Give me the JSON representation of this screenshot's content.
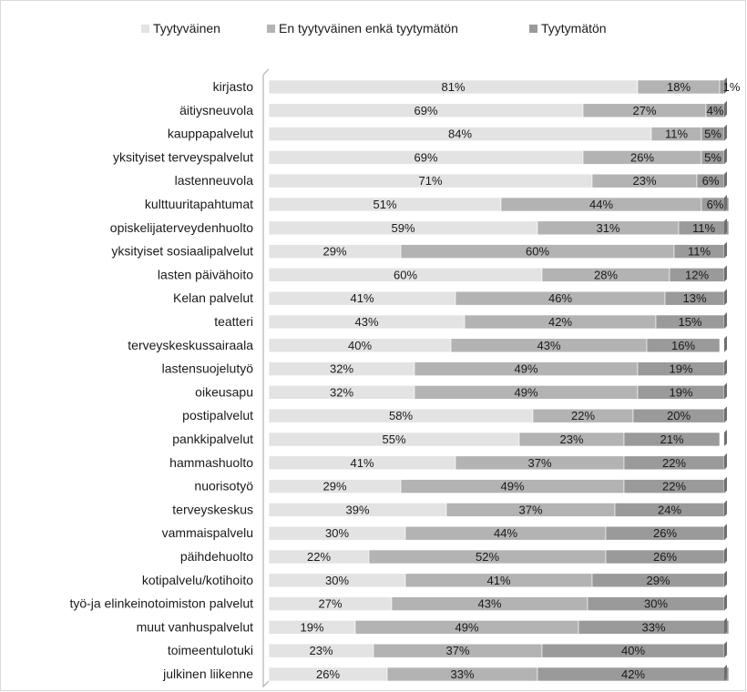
{
  "chart_data": {
    "type": "bar",
    "orientation": "horizontal",
    "stacked": true,
    "percent_stacked": true,
    "legend_placement": "top",
    "grid": false,
    "xlim": [
      0,
      100
    ],
    "categories": [
      "kirjasto",
      "äitiysneuvola",
      "kauppapalvelut",
      "yksityiset terveyspalvelut",
      "lastenneuvola",
      "kulttuuritapahtumat",
      "opiskelijaterveydenhuolto",
      "yksityiset sosiaalipalvelut",
      "lasten päivähoito",
      "Kelan palvelut",
      "teatteri",
      "terveyskeskussairaala",
      "lastensuojelutyö",
      "oikeusapu",
      "postipalvelut",
      "pankkipalvelut",
      "hammashuolto",
      "nuorisotyö",
      "terveyskeskus",
      "vammaispalvelu",
      "päihdehuolto",
      "kotipalvelu/kotihoito",
      "työ-ja elinkeinotoimiston palvelut",
      "muut vanhuspalvelut",
      "toimeentulotuki",
      "julkinen liikenne"
    ],
    "series": [
      {
        "name": "Tyytyväinen",
        "color": "#e3e3e3",
        "values": [
          81,
          69,
          84,
          69,
          71,
          51,
          59,
          29,
          60,
          41,
          43,
          40,
          32,
          32,
          58,
          55,
          41,
          29,
          39,
          30,
          22,
          30,
          27,
          19,
          23,
          26
        ]
      },
      {
        "name": "En tyytyväinen enkä tyytymätön",
        "color": "#b3b3b3",
        "values": [
          18,
          27,
          11,
          26,
          23,
          44,
          31,
          60,
          28,
          46,
          42,
          43,
          49,
          49,
          22,
          23,
          37,
          49,
          37,
          44,
          52,
          41,
          43,
          49,
          37,
          33
        ]
      },
      {
        "name": "Tyytymätön",
        "color": "#9a9a9a",
        "values": [
          1,
          4,
          5,
          5,
          6,
          6,
          11,
          11,
          12,
          13,
          15,
          16,
          19,
          19,
          20,
          21,
          22,
          22,
          24,
          26,
          26,
          29,
          30,
          33,
          40,
          42
        ]
      }
    ]
  }
}
